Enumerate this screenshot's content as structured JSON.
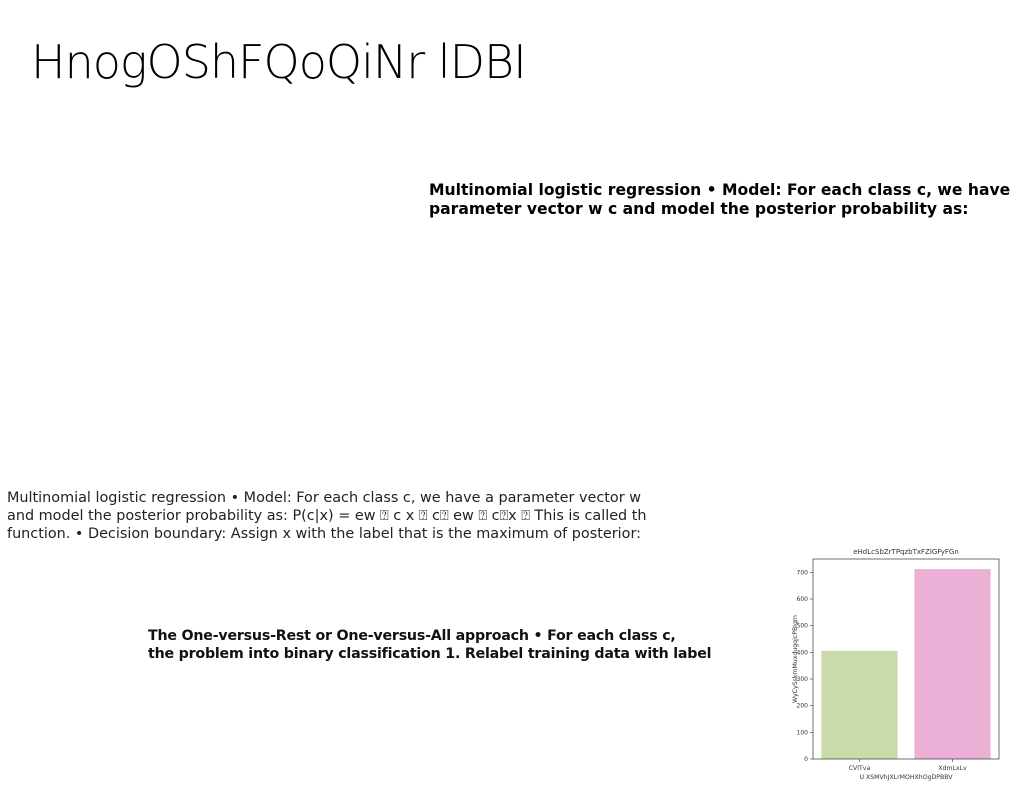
{
  "slide": {
    "title": "HnogOShFQoQiNr lDBI"
  },
  "text_blocks": {
    "block1": [
      "Multinomial logistic regression • Model: For each class c, we have",
      "parameter vector w c and model the posterior probability as:"
    ],
    "block2": [
      "Multinomial logistic regression • Model: For each class c, we have a parameter vector w",
      "and model the posterior probability as: P(c|x) = ew ⍰ c x ⍰ c⍰ ew ⍰ c⍰x ⍰ This is called the",
      "function. • Decision boundary: Assign x with the label that is the maximum of posterior:"
    ],
    "block3": [
      "The One-versus-Rest or One-versus-All approach • For each class c,",
      "the problem into binary classification 1. Relabel training data with label"
    ]
  },
  "chart_data": {
    "type": "bar",
    "title": "eHdLcSbZrTPqzbTxFZIGFyFGn",
    "xlabel": "U XSMVhJXLrMOHXhOgDPBBV",
    "ylabel": "WyCySskmMuxdugqjcPBIqm",
    "categories": [
      "CVlTva",
      "XdmLxLv"
    ],
    "values": [
      405,
      712
    ],
    "colors": [
      "#c8dba8",
      "#ecafd6"
    ],
    "ylim": [
      0,
      750
    ],
    "yticks": [
      0,
      100,
      200,
      300,
      400,
      500,
      600,
      700
    ],
    "grid": false
  }
}
